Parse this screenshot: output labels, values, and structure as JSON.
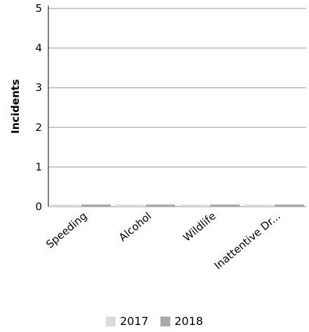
{
  "chart_data": {
    "type": "bar",
    "categories": [
      "Speeding",
      "Alcohol",
      "Wildlife",
      "Inattentive Dr..."
    ],
    "series": [
      {
        "name": "2017",
        "values": [
          0,
          0,
          0,
          0
        ],
        "color": "#dcdcdc"
      },
      {
        "name": "2018",
        "values": [
          0,
          0,
          0,
          0
        ],
        "color": "#a9a9a9"
      }
    ],
    "ylabel": "Incidents",
    "ylim": [
      0,
      5
    ],
    "yticks": [
      "0",
      "1",
      "2",
      "3",
      "4",
      "5"
    ],
    "grid": true,
    "legend_position": "bottom"
  }
}
